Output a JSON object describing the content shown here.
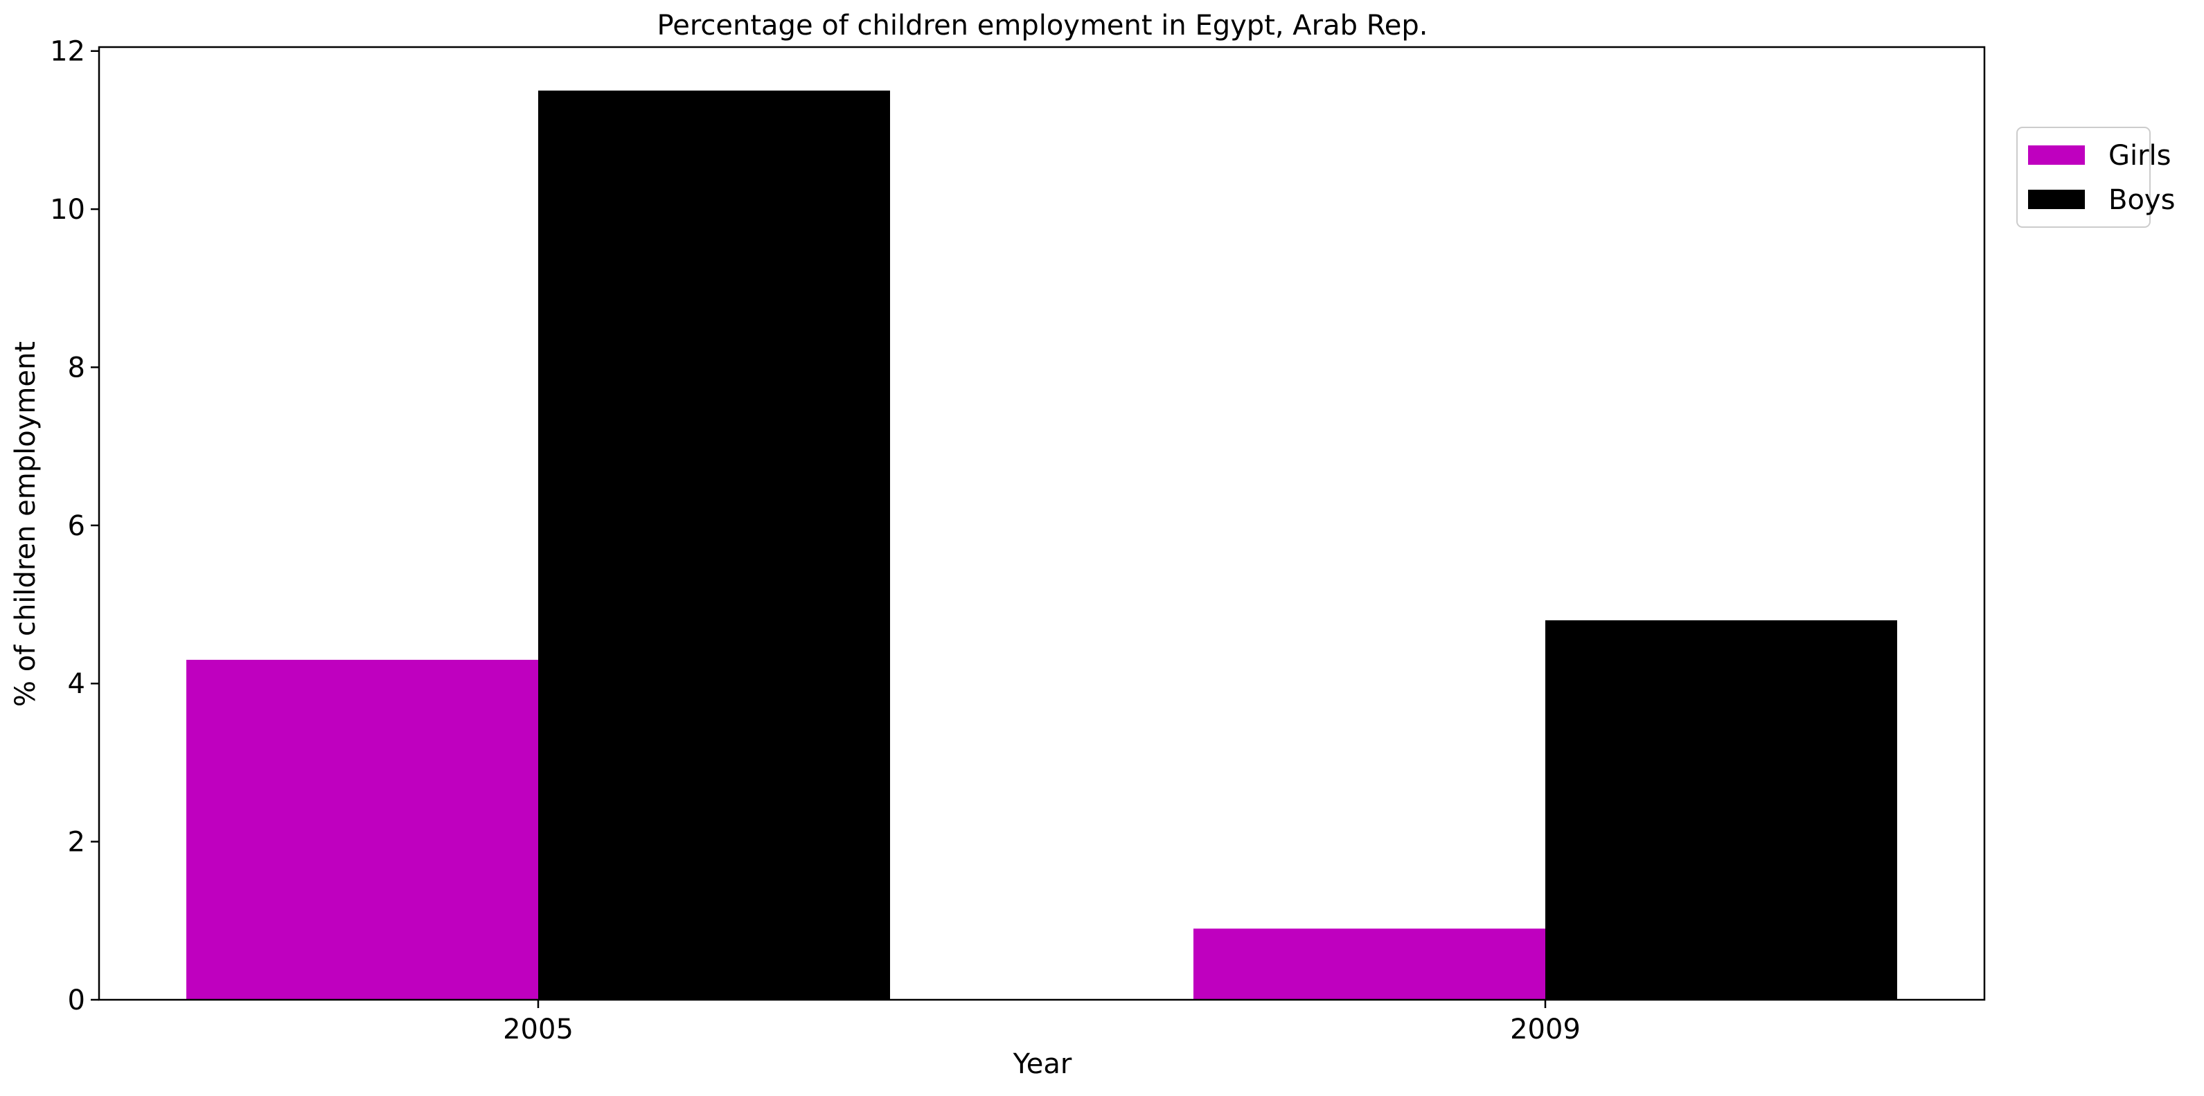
{
  "chart_data": {
    "type": "bar",
    "title": "Percentage of children employment in Egypt, Arab Rep.",
    "xlabel": "Year",
    "ylabel": "% of children employment",
    "categories": [
      "2005",
      "2009"
    ],
    "series": [
      {
        "name": "Girls",
        "values": [
          4.3,
          0.9
        ],
        "color": "#bf00bf"
      },
      {
        "name": "Boys",
        "values": [
          11.5,
          4.8
        ],
        "color": "#000000"
      }
    ],
    "ylim": [
      0,
      12.05
    ],
    "yticks": [
      0,
      2,
      4,
      6,
      8,
      10,
      12
    ],
    "grid": false,
    "legend_position": "top-right-outside"
  }
}
